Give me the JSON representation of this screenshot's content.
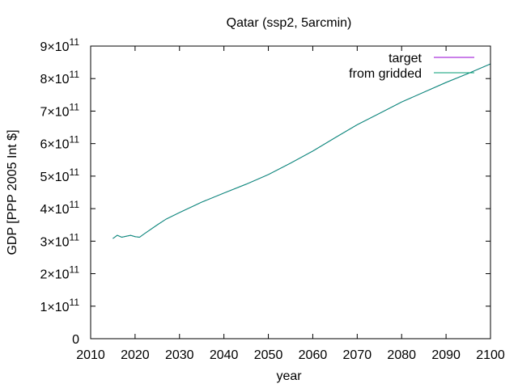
{
  "chart_data": {
    "type": "line",
    "title": "Qatar (ssp2, 5arcmin)",
    "xlabel": "year",
    "ylabel": "GDP [PPP 2005 Int $]",
    "xlim": [
      2010,
      2100
    ],
    "ylim": [
      0,
      900000000000
    ],
    "grid": false,
    "legend_position": "top-right",
    "x_ticks": [
      2010,
      2020,
      2030,
      2040,
      2050,
      2060,
      2070,
      2080,
      2090,
      2100
    ],
    "x_tick_labels": [
      "2010",
      "2020",
      "2030",
      "2040",
      "2050",
      "2060",
      "2070",
      "2080",
      "2090",
      "2100"
    ],
    "y_ticks": [
      {
        "value": 0,
        "mantissa": "0",
        "exponent": ""
      },
      {
        "value": 100000000000,
        "mantissa": "1×10",
        "exponent": "11"
      },
      {
        "value": 200000000000,
        "mantissa": "2×10",
        "exponent": "11"
      },
      {
        "value": 300000000000,
        "mantissa": "3×10",
        "exponent": "11"
      },
      {
        "value": 400000000000,
        "mantissa": "4×10",
        "exponent": "11"
      },
      {
        "value": 500000000000,
        "mantissa": "5×10",
        "exponent": "11"
      },
      {
        "value": 600000000000,
        "mantissa": "6×10",
        "exponent": "11"
      },
      {
        "value": 700000000000,
        "mantissa": "7×10",
        "exponent": "11"
      },
      {
        "value": 800000000000,
        "mantissa": "8×10",
        "exponent": "11"
      },
      {
        "value": 900000000000,
        "mantissa": "9×10",
        "exponent": "11"
      }
    ],
    "series": [
      {
        "name": "target",
        "color": "#9400d3",
        "x": [
          2015,
          2016,
          2017,
          2018,
          2019,
          2020,
          2021,
          2022,
          2025,
          2027,
          2030,
          2035,
          2040,
          2045,
          2050,
          2055,
          2060,
          2065,
          2070,
          2075,
          2080,
          2085,
          2090,
          2095,
          2100
        ],
        "y": [
          308000000000,
          318000000000,
          312000000000,
          315000000000,
          318000000000,
          314000000000,
          312000000000,
          322000000000,
          350000000000,
          368000000000,
          388000000000,
          420000000000,
          448000000000,
          475000000000,
          505000000000,
          540000000000,
          577000000000,
          618000000000,
          658000000000,
          693000000000,
          728000000000,
          758000000000,
          788000000000,
          816000000000,
          845000000000
        ]
      },
      {
        "name": "from gridded",
        "color": "#009e73",
        "x": [
          2015,
          2016,
          2017,
          2018,
          2019,
          2020,
          2021,
          2022,
          2025,
          2027,
          2030,
          2035,
          2040,
          2045,
          2050,
          2055,
          2060,
          2065,
          2070,
          2075,
          2080,
          2085,
          2090,
          2095,
          2100
        ],
        "y": [
          308000000000,
          318000000000,
          312000000000,
          315000000000,
          318000000000,
          314000000000,
          312000000000,
          322000000000,
          350000000000,
          368000000000,
          388000000000,
          420000000000,
          448000000000,
          475000000000,
          505000000000,
          540000000000,
          577000000000,
          618000000000,
          658000000000,
          693000000000,
          728000000000,
          758000000000,
          788000000000,
          816000000000,
          845000000000
        ]
      }
    ]
  }
}
